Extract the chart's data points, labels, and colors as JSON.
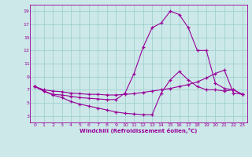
{
  "xlabel": "Windchill (Refroidissement éolien,°C)",
  "bg_color": "#cce8e8",
  "line_color": "#990099",
  "grid_color": "#99cccc",
  "xlim": [
    -0.5,
    23.5
  ],
  "ylim": [
    2,
    20
  ],
  "xticks": [
    0,
    1,
    2,
    3,
    4,
    5,
    6,
    7,
    8,
    9,
    10,
    11,
    12,
    13,
    14,
    15,
    16,
    17,
    18,
    19,
    20,
    21,
    22,
    23
  ],
  "yticks": [
    3,
    5,
    7,
    9,
    11,
    13,
    15,
    17,
    19
  ],
  "line1_x": [
    0,
    1,
    2,
    3,
    4,
    5,
    6,
    7,
    8,
    9,
    10,
    11,
    12,
    13,
    14,
    15,
    16,
    17,
    18,
    19,
    20,
    21,
    22,
    23
  ],
  "line1_y": [
    7.5,
    6.8,
    6.3,
    6.2,
    6.0,
    5.8,
    5.7,
    5.6,
    5.5,
    5.5,
    6.5,
    9.5,
    13.5,
    16.5,
    17.2,
    19.0,
    18.5,
    16.5,
    13.0,
    13.0,
    8.0,
    7.2,
    7.0,
    6.3
  ],
  "line2_x": [
    0,
    1,
    2,
    3,
    4,
    5,
    6,
    7,
    8,
    9,
    10,
    11,
    12,
    13,
    14,
    15,
    16,
    17,
    18,
    19,
    20,
    21,
    22,
    23
  ],
  "line2_y": [
    7.5,
    7.0,
    6.8,
    6.7,
    6.5,
    6.4,
    6.3,
    6.3,
    6.2,
    6.2,
    6.3,
    6.4,
    6.6,
    6.8,
    7.0,
    7.2,
    7.5,
    7.8,
    8.2,
    8.8,
    9.5,
    10.0,
    6.5,
    6.3
  ],
  "line3_x": [
    0,
    1,
    2,
    3,
    4,
    5,
    6,
    7,
    8,
    9,
    10,
    11,
    12,
    13,
    14,
    15,
    16,
    17,
    18,
    19,
    20,
    21,
    22,
    23
  ],
  "line3_y": [
    7.5,
    6.8,
    6.2,
    5.8,
    5.2,
    4.8,
    4.5,
    4.2,
    3.9,
    3.6,
    3.4,
    3.3,
    3.2,
    3.2,
    6.5,
    8.5,
    9.8,
    8.5,
    7.5,
    7.0,
    7.0,
    6.8,
    7.0,
    6.3
  ]
}
